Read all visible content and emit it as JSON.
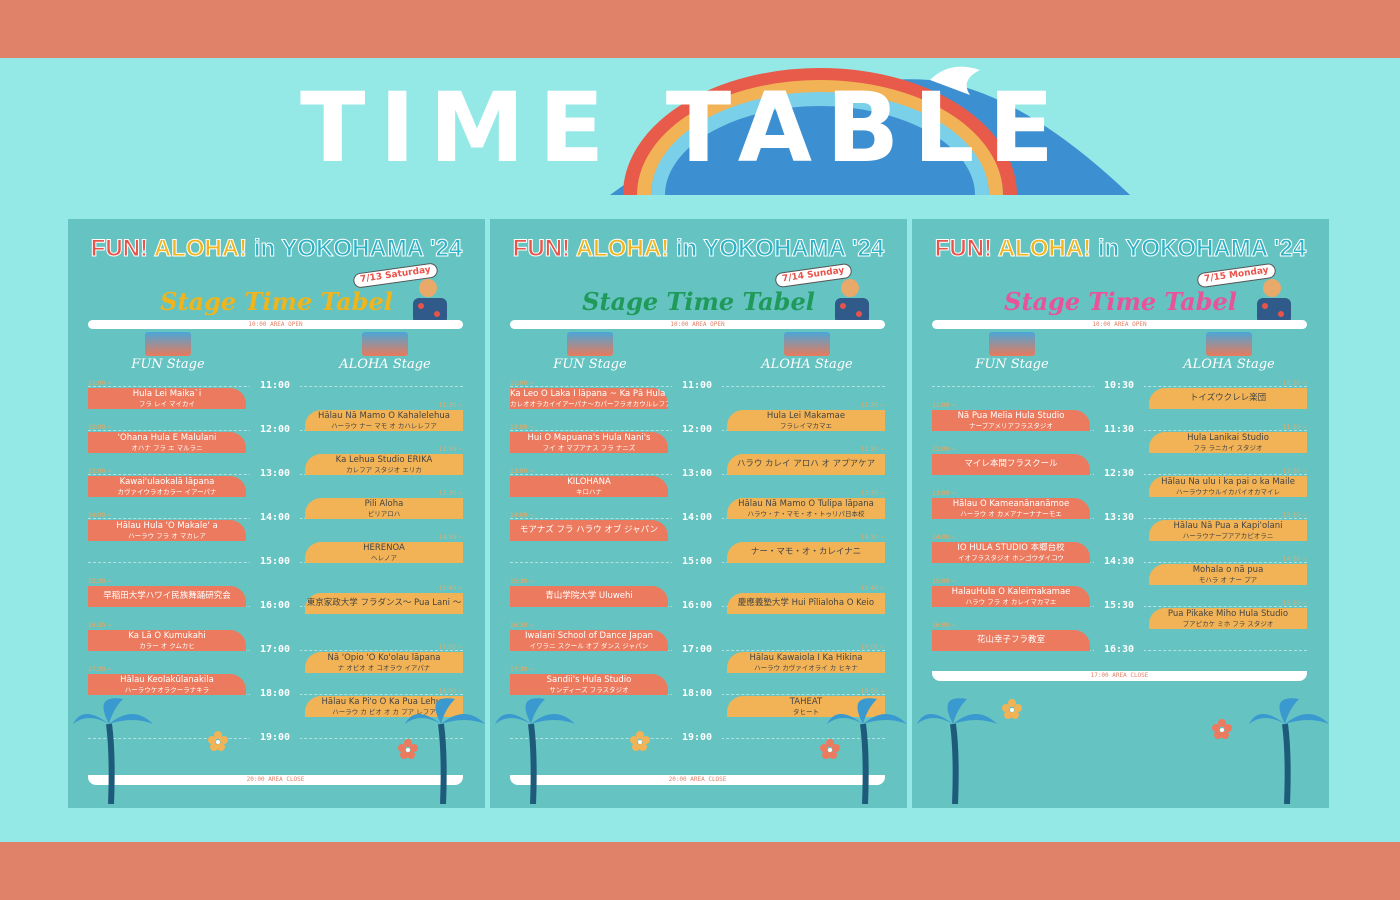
{
  "header": {
    "title": "TIME TABLE"
  },
  "colors": {
    "band": "#e0826a",
    "bg": "#94e8e6",
    "poster": "#65c3c1",
    "fun_bar": "#ec7a5e",
    "aloha_bar": "#f2b356"
  },
  "posters": [
    {
      "event_title": [
        "FUN!",
        "ALOHA!",
        "in YOKOHAMA '24"
      ],
      "subtitle": "Stage Time Tabel",
      "subtitle_color": "#f0b41c",
      "date": "7/13 Saturday",
      "open": "10:00 AREA OPEN",
      "close": "20:00 AREA CLOSE",
      "stages": [
        "FUN Stage",
        "ALOHA Stage"
      ],
      "time_labels": [
        "11:00",
        "12:00",
        "13:00",
        "14:00",
        "15:00",
        "16:00",
        "17:00",
        "18:00",
        "19:00"
      ],
      "fun": [
        {
          "start": "11:00 ~",
          "name": "Hula Lei Maika`i",
          "kana": "フラ レイ マイカイ"
        },
        {
          "start": "12:00 ~",
          "name": "'Ohana Hula E Malulani",
          "kana": "オハナ フラ エ マルラニ"
        },
        {
          "start": "13:00 ~",
          "name": "Kawai'ulaokalā lāpana",
          "kana": "カヴァイウラオカラー イアーパナ"
        },
        {
          "start": "14:00 ~",
          "name": "Hālau Hula 'O Makale' a",
          "kana": "ハーラウ フラ オ マカレア"
        },
        {
          "start": "15:30 ~",
          "name": "早稲田大学ハワイ民族舞踊研究会",
          "kana": ""
        },
        {
          "start": "16:30 ~",
          "name": "Ka Lā O Kumukahi",
          "kana": "カラー オ クムカヒ"
        },
        {
          "start": "17:30 ~",
          "name": "Hālau Keolakūlanakila",
          "kana": "ハーラウケオラクーラナキラ"
        }
      ],
      "aloha": [
        {
          "start": "11:30 ~",
          "name": "Hālau Nā Mamo O Kahalelehua",
          "kana": "ハーラウ ナー マモ オ カハレレフア"
        },
        {
          "start": "12:30 ~",
          "name": "Ka Lehua Studio ERIKA",
          "kana": "カレフア スタジオ エリカ"
        },
        {
          "start": "13:30 ~",
          "name": "Pili Aloha",
          "kana": "ピリアロハ"
        },
        {
          "start": "14:30 ~",
          "name": "HERENOA",
          "kana": "ヘレノア"
        },
        {
          "start": "15:40 ~",
          "name": "東京家政大学 フラダンス〜 Pua Lani 〜",
          "kana": ""
        },
        {
          "start": "17:00 ~",
          "name": "Nā 'Ōpio 'O Ko'olau lāpana",
          "kana": "ナ オピオ オ コオラウ イアパナ"
        },
        {
          "start": "18:00 ~",
          "name": "Hālau Ka Pi'o O Ka Pua Lehua",
          "kana": "ハーラウ カ ピオ オ カ プア レフア"
        }
      ]
    },
    {
      "event_title": [
        "FUN!",
        "ALOHA!",
        "in YOKOHAMA '24"
      ],
      "subtitle": "Stage Time Tabel",
      "subtitle_color": "#1f9a5a",
      "date": "7/14 Sunday",
      "open": "10:00 AREA OPEN",
      "close": "20:00 AREA CLOSE",
      "stages": [
        "FUN Stage",
        "ALOHA Stage"
      ],
      "time_labels": [
        "11:00",
        "12:00",
        "13:00",
        "14:00",
        "15:00",
        "16:00",
        "17:00",
        "18:00",
        "19:00"
      ],
      "fun": [
        {
          "start": "11:00 ~",
          "name": "Ka Leo O Laka I lāpana ~ Ka Pā Hula 'O Kaulalehua",
          "kana": "カレオオラカイイアーパナ〜カパーフラオカウルレフア"
        },
        {
          "start": "12:00 ~",
          "name": "Hui O Mapuana's Hula Nani's",
          "kana": "フイ オ マプアナス フラ ナニズ"
        },
        {
          "start": "13:00 ~",
          "name": "KILOHANA",
          "kana": "キロハナ"
        },
        {
          "start": "14:00 ~",
          "name": "モアナズ フラ ハラウ オブ ジャパン",
          "kana": ""
        },
        {
          "start": "15:30 ~",
          "name": "青山学院大学 Uluwehi",
          "kana": ""
        },
        {
          "start": "16:30 ~",
          "name": "Iwalani School of Dance Japan",
          "kana": "イワラニ スクール オブ ダンス ジャパン"
        },
        {
          "start": "17:30 ~",
          "name": "Sandii's Hula Studio",
          "kana": "サンディーズ フラスタジオ"
        }
      ],
      "aloha": [
        {
          "start": "11:30 ~",
          "name": "Hula Lei Makamae",
          "kana": "フラレイマカマエ"
        },
        {
          "start": "12:30 ~",
          "name": "ハラウ カレイ アロハ オ アプアケア",
          "kana": ""
        },
        {
          "start": "13:30 ~",
          "name": "Hālau Nā Mamo O Tulipa lāpana",
          "kana": "ハラウ・ナ・マモ・オ・トゥリパ日本校"
        },
        {
          "start": "14:30 ~",
          "name": "ナー・マモ・オ・カレイナニ",
          "kana": ""
        },
        {
          "start": "15:40 ~",
          "name": "慶應義塾大学 Hui Pīlialoha O Keio",
          "kana": ""
        },
        {
          "start": "17:00 ~",
          "name": "Hālau Kawaiola I Ka Hikina",
          "kana": "ハーラウ カヴァイオライ カ ヒキナ"
        },
        {
          "start": "18:00 ~",
          "name": "TAHEAT",
          "kana": "タヒート"
        }
      ]
    },
    {
      "event_title": [
        "FUN!",
        "ALOHA!",
        "in YOKOHAMA '24"
      ],
      "subtitle": "Stage Time Tabel",
      "subtitle_color": "#e8539a",
      "date": "7/15 Monday",
      "open": "10:00 AREA OPEN",
      "close": "17:00 AREA CLOSE",
      "stages": [
        "FUN Stage",
        "ALOHA Stage"
      ],
      "time_labels": [
        "10:30",
        "11:30",
        "12:30",
        "13:30",
        "14:30",
        "15:30",
        "16:30"
      ],
      "fun": [
        {
          "start": "11:00 ~",
          "name": "Nā Pua Melia Hula Studio",
          "kana": "ナープアメリアフラスタジオ"
        },
        {
          "start": "12:00 ~",
          "name": "マイレ本間フラスクール",
          "kana": ""
        },
        {
          "start": "13:00 ~",
          "name": "Hālau O Kameanānanāmoe",
          "kana": "ハーラウ オ カメアナーナナーモエ"
        },
        {
          "start": "14:00 ~",
          "name": "IO HULA STUDIO 本郷台校",
          "kana": "イオフラスタジオ ホンゴウダイコウ"
        },
        {
          "start": "15:00 ~",
          "name": "HalauHula O Kaleimakamae",
          "kana": "ハラウ フラ オ カレイマカマエ"
        },
        {
          "start": "16:00 ~",
          "name": "花山幸子フラ教室",
          "kana": ""
        }
      ],
      "aloha": [
        {
          "start": "10:30 ~",
          "name": "トイズウクレレ楽団",
          "kana": ""
        },
        {
          "start": "11:30 ~",
          "name": "Hula Lanikai Studio",
          "kana": "フラ ラニカイ スタジオ"
        },
        {
          "start": "12:30 ~",
          "name": "Hālau Na ulu i ka pai o ka Maile",
          "kana": "ハーラウナウルイカパイオカマイレ"
        },
        {
          "start": "13:30 ~",
          "name": "Hālau Nā Pua a Kapi'olani",
          "kana": "ハーラウナープアアカピオラニ"
        },
        {
          "start": "14:30 ~",
          "name": "Mohala o nā pua",
          "kana": "モハラ オ ナー プア"
        },
        {
          "start": "15:30 ~",
          "name": "Pua Pikake Miho Hula Studio",
          "kana": "プアピカケ ミホ フラ スタジオ"
        }
      ]
    }
  ]
}
